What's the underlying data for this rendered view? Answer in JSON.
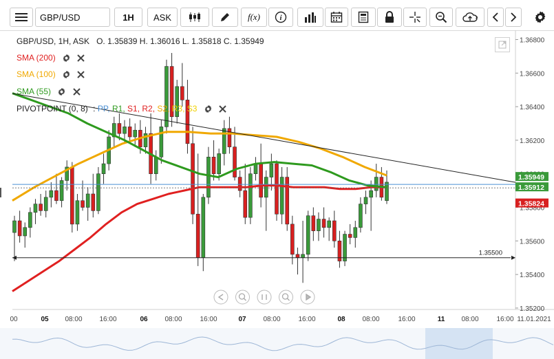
{
  "toolbar": {
    "symbol": "GBP/USD",
    "timeframe": "1H",
    "price_type": "ASK",
    "function_label": "f(x)"
  },
  "legend": {
    "title": "GBP/USD, 1H, ASK",
    "ohlc": "O. 1.35839 H. 1.36016 L. 1.35818 C. 1.35949",
    "indicators": [
      {
        "label": "SMA (200)",
        "color": "#e02020"
      },
      {
        "label": "SMA (100)",
        "color": "#f0a800"
      },
      {
        "label": "SMA (55)",
        "color": "#2e9a1e"
      }
    ],
    "pivot": {
      "label": "PIVOTPOINT (0, 8)",
      "colon": ":",
      "items": [
        {
          "label": "PP,",
          "color": "#4a8fd4"
        },
        {
          "label": "R1,",
          "color": "#2e9a1e"
        },
        {
          "label": "S1,",
          "color": "#e02020"
        },
        {
          "label": "R2,",
          "color": "#e02020"
        },
        {
          "label": "S2,",
          "color": "#f0a800"
        },
        {
          "label": "R3,",
          "color": "#f0d000"
        },
        {
          "label": "S3",
          "color": "#f0d000"
        }
      ]
    }
  },
  "y_axis": {
    "ticks": [
      "1.36800",
      "1.36600",
      "1.36400",
      "1.36200",
      "1.36000",
      "1.35800",
      "1.35600",
      "1.35400",
      "1.35200"
    ],
    "tick_values": [
      1.368,
      1.366,
      1.364,
      1.362,
      1.36,
      1.358,
      1.356,
      1.354,
      1.352
    ],
    "price_labels": [
      {
        "text": "1.35949",
        "value": 1.35949,
        "bg": "#3a9a3a",
        "fg": "#ffffff"
      },
      {
        "text": "1.35912",
        "value": 1.35912,
        "bg": "#3a9a3a",
        "fg": "#ffffff"
      },
      {
        "text": "1.35824",
        "value": 1.35824,
        "bg": "#d82020",
        "fg": "#ffffff"
      }
    ],
    "hline": {
      "text": "1.35500",
      "value": 1.355
    }
  },
  "x_axis": {
    "ticks": [
      {
        "label": "00",
        "bold": false
      },
      {
        "label": "05",
        "bold": true
      },
      {
        "label": "08:00",
        "bold": false
      },
      {
        "label": "16:00",
        "bold": false
      },
      {
        "label": "06",
        "bold": true
      },
      {
        "label": "08:00",
        "bold": false
      },
      {
        "label": "16:00",
        "bold": false
      },
      {
        "label": "07",
        "bold": true
      },
      {
        "label": "08:00",
        "bold": false
      },
      {
        "label": "16:00",
        "bold": false
      },
      {
        "label": "08",
        "bold": true
      },
      {
        "label": "08:00",
        "bold": false
      },
      {
        "label": "16:00",
        "bold": false
      },
      {
        "label": "11",
        "bold": true
      },
      {
        "label": "08:00",
        "bold": false
      },
      {
        "label": "16:00",
        "bold": false
      },
      {
        "label": "11.01.2021",
        "bold": false
      }
    ]
  },
  "colors": {
    "up": "#3a9a3a",
    "down": "#d82020",
    "sma200": "#e02020",
    "sma100": "#f0a800",
    "sma55": "#2e9a1e",
    "pivot_line": "#4a8fd4"
  },
  "chart_data": {
    "type": "candlestick",
    "series": [
      {
        "name": "GBP/USD, 1H, ASK",
        "kind": "ohlc",
        "values": [
          [
            1.3565,
            1.3575,
            1.3548,
            1.3572
          ],
          [
            1.3572,
            1.3578,
            1.3559,
            1.3563
          ],
          [
            1.3563,
            1.3571,
            1.3556,
            1.3568
          ],
          [
            1.3568,
            1.358,
            1.3562,
            1.3577
          ],
          [
            1.3577,
            1.3585,
            1.357,
            1.3582
          ],
          [
            1.3582,
            1.3588,
            1.3575,
            1.3578
          ],
          [
            1.3578,
            1.359,
            1.3574,
            1.3586
          ],
          [
            1.3586,
            1.3595,
            1.358,
            1.359
          ],
          [
            1.359,
            1.36,
            1.3582,
            1.3584
          ],
          [
            1.3584,
            1.3598,
            1.358,
            1.3596
          ],
          [
            1.3596,
            1.3608,
            1.359,
            1.3604
          ],
          [
            1.3604,
            1.3607,
            1.3565,
            1.357
          ],
          [
            1.357,
            1.3588,
            1.3566,
            1.3584
          ],
          [
            1.3584,
            1.3596,
            1.3578,
            1.358
          ],
          [
            1.358,
            1.3592,
            1.3572,
            1.3588
          ],
          [
            1.3588,
            1.36,
            1.3574,
            1.3578
          ],
          [
            1.3578,
            1.3604,
            1.3576,
            1.36
          ],
          [
            1.36,
            1.3612,
            1.3594,
            1.3606
          ],
          [
            1.3606,
            1.3626,
            1.3602,
            1.3622
          ],
          [
            1.3622,
            1.3634,
            1.3616,
            1.363
          ],
          [
            1.363,
            1.3636,
            1.362,
            1.3624
          ],
          [
            1.3624,
            1.3632,
            1.3618,
            1.3628
          ],
          [
            1.3628,
            1.3633,
            1.3618,
            1.3622
          ],
          [
            1.3622,
            1.363,
            1.3616,
            1.3626
          ],
          [
            1.3626,
            1.3632,
            1.3612,
            1.3616
          ],
          [
            1.3616,
            1.3628,
            1.3612,
            1.3624
          ],
          [
            1.3624,
            1.3636,
            1.3594,
            1.36
          ],
          [
            1.36,
            1.3614,
            1.3596,
            1.361
          ],
          [
            1.361,
            1.3632,
            1.3606,
            1.3628
          ],
          [
            1.3628,
            1.3668,
            1.3624,
            1.3664
          ],
          [
            1.3664,
            1.3672,
            1.3628,
            1.3634
          ],
          [
            1.3634,
            1.3656,
            1.363,
            1.3652
          ],
          [
            1.3652,
            1.3666,
            1.364,
            1.3644
          ],
          [
            1.3644,
            1.3656,
            1.3612,
            1.3618
          ],
          [
            1.3618,
            1.3628,
            1.357,
            1.3576
          ],
          [
            1.3576,
            1.3612,
            1.3545,
            1.355
          ],
          [
            1.355,
            1.3588,
            1.3542,
            1.3586
          ],
          [
            1.3586,
            1.3616,
            1.3582,
            1.361
          ],
          [
            1.361,
            1.362,
            1.3596,
            1.36
          ],
          [
            1.36,
            1.3615,
            1.3596,
            1.3612
          ],
          [
            1.3612,
            1.3632,
            1.3605,
            1.3627
          ],
          [
            1.3627,
            1.3634,
            1.3612,
            1.3616
          ],
          [
            1.3616,
            1.3628,
            1.3596,
            1.3598
          ],
          [
            1.3598,
            1.3602,
            1.3586,
            1.359
          ],
          [
            1.359,
            1.3606,
            1.357,
            1.3574
          ],
          [
            1.3574,
            1.3604,
            1.357,
            1.36
          ],
          [
            1.36,
            1.361,
            1.3596,
            1.3606
          ],
          [
            1.3606,
            1.3618,
            1.358,
            1.3586
          ],
          [
            1.3586,
            1.3602,
            1.3566,
            1.3598
          ],
          [
            1.3598,
            1.3612,
            1.359,
            1.3606
          ],
          [
            1.3606,
            1.3608,
            1.3572,
            1.3576
          ],
          [
            1.3576,
            1.3604,
            1.357,
            1.3598
          ],
          [
            1.3598,
            1.3604,
            1.3566,
            1.357
          ],
          [
            1.357,
            1.3575,
            1.3546,
            1.3552
          ],
          [
            1.3552,
            1.3556,
            1.354,
            1.355
          ],
          [
            1.355,
            1.3572,
            1.3535,
            1.3552
          ],
          [
            1.3552,
            1.3578,
            1.3548,
            1.3575
          ],
          [
            1.3575,
            1.358,
            1.356,
            1.3566
          ],
          [
            1.3566,
            1.3577,
            1.356,
            1.3573
          ],
          [
            1.3573,
            1.358,
            1.3562,
            1.3568
          ],
          [
            1.3568,
            1.3574,
            1.356,
            1.3572
          ],
          [
            1.3572,
            1.3578,
            1.3556,
            1.356
          ],
          [
            1.356,
            1.3566,
            1.3544,
            1.3548
          ],
          [
            1.3548,
            1.3566,
            1.3545,
            1.3564
          ],
          [
            1.3564,
            1.357,
            1.3558,
            1.3562
          ],
          [
            1.3562,
            1.3572,
            1.3556,
            1.3568
          ],
          [
            1.3568,
            1.3586,
            1.3565,
            1.3582
          ],
          [
            1.3582,
            1.359,
            1.3576,
            1.3586
          ],
          [
            1.3586,
            1.3596,
            1.3566,
            1.359
          ],
          [
            1.359,
            1.3606,
            1.3586,
            1.3598
          ],
          [
            1.3598,
            1.3604,
            1.3584,
            1.3586
          ],
          [
            1.3584,
            1.3602,
            1.3582,
            1.3595
          ]
        ]
      },
      {
        "name": "SMA (200)",
        "values": [
          1.353,
          1.3536,
          1.3542,
          1.3548,
          1.3555,
          1.3562,
          1.357,
          1.3577,
          1.3582,
          1.3585,
          1.3588,
          1.359,
          1.3592,
          1.3592,
          1.3592,
          1.3592,
          1.3593,
          1.3593,
          1.3592,
          1.3592,
          1.3592,
          1.3591,
          1.3591,
          1.3592,
          1.3592
        ]
      },
      {
        "name": "SMA (100)",
        "values": [
          1.3584,
          1.3592,
          1.3599,
          1.3606,
          1.3612,
          1.3618,
          1.3622,
          1.3625,
          1.3625,
          1.3624,
          1.3624,
          1.3623,
          1.3622,
          1.3619,
          1.3615,
          1.361,
          1.3604,
          1.3599
        ]
      },
      {
        "name": "SMA (55)",
        "values": [
          1.3648,
          1.3644,
          1.364,
          1.3636,
          1.363,
          1.3625,
          1.362,
          1.3614,
          1.3608,
          1.3604,
          1.36,
          1.3598,
          1.3603,
          1.3606,
          1.3607,
          1.3606,
          1.3605,
          1.3601,
          1.3596,
          1.3593,
          1.3592
        ]
      },
      {
        "name": "PP",
        "values": [
          1.35912
        ]
      }
    ],
    "ylim": [
      1.3518,
      1.3686
    ],
    "grid": false,
    "legend": "top-left"
  }
}
